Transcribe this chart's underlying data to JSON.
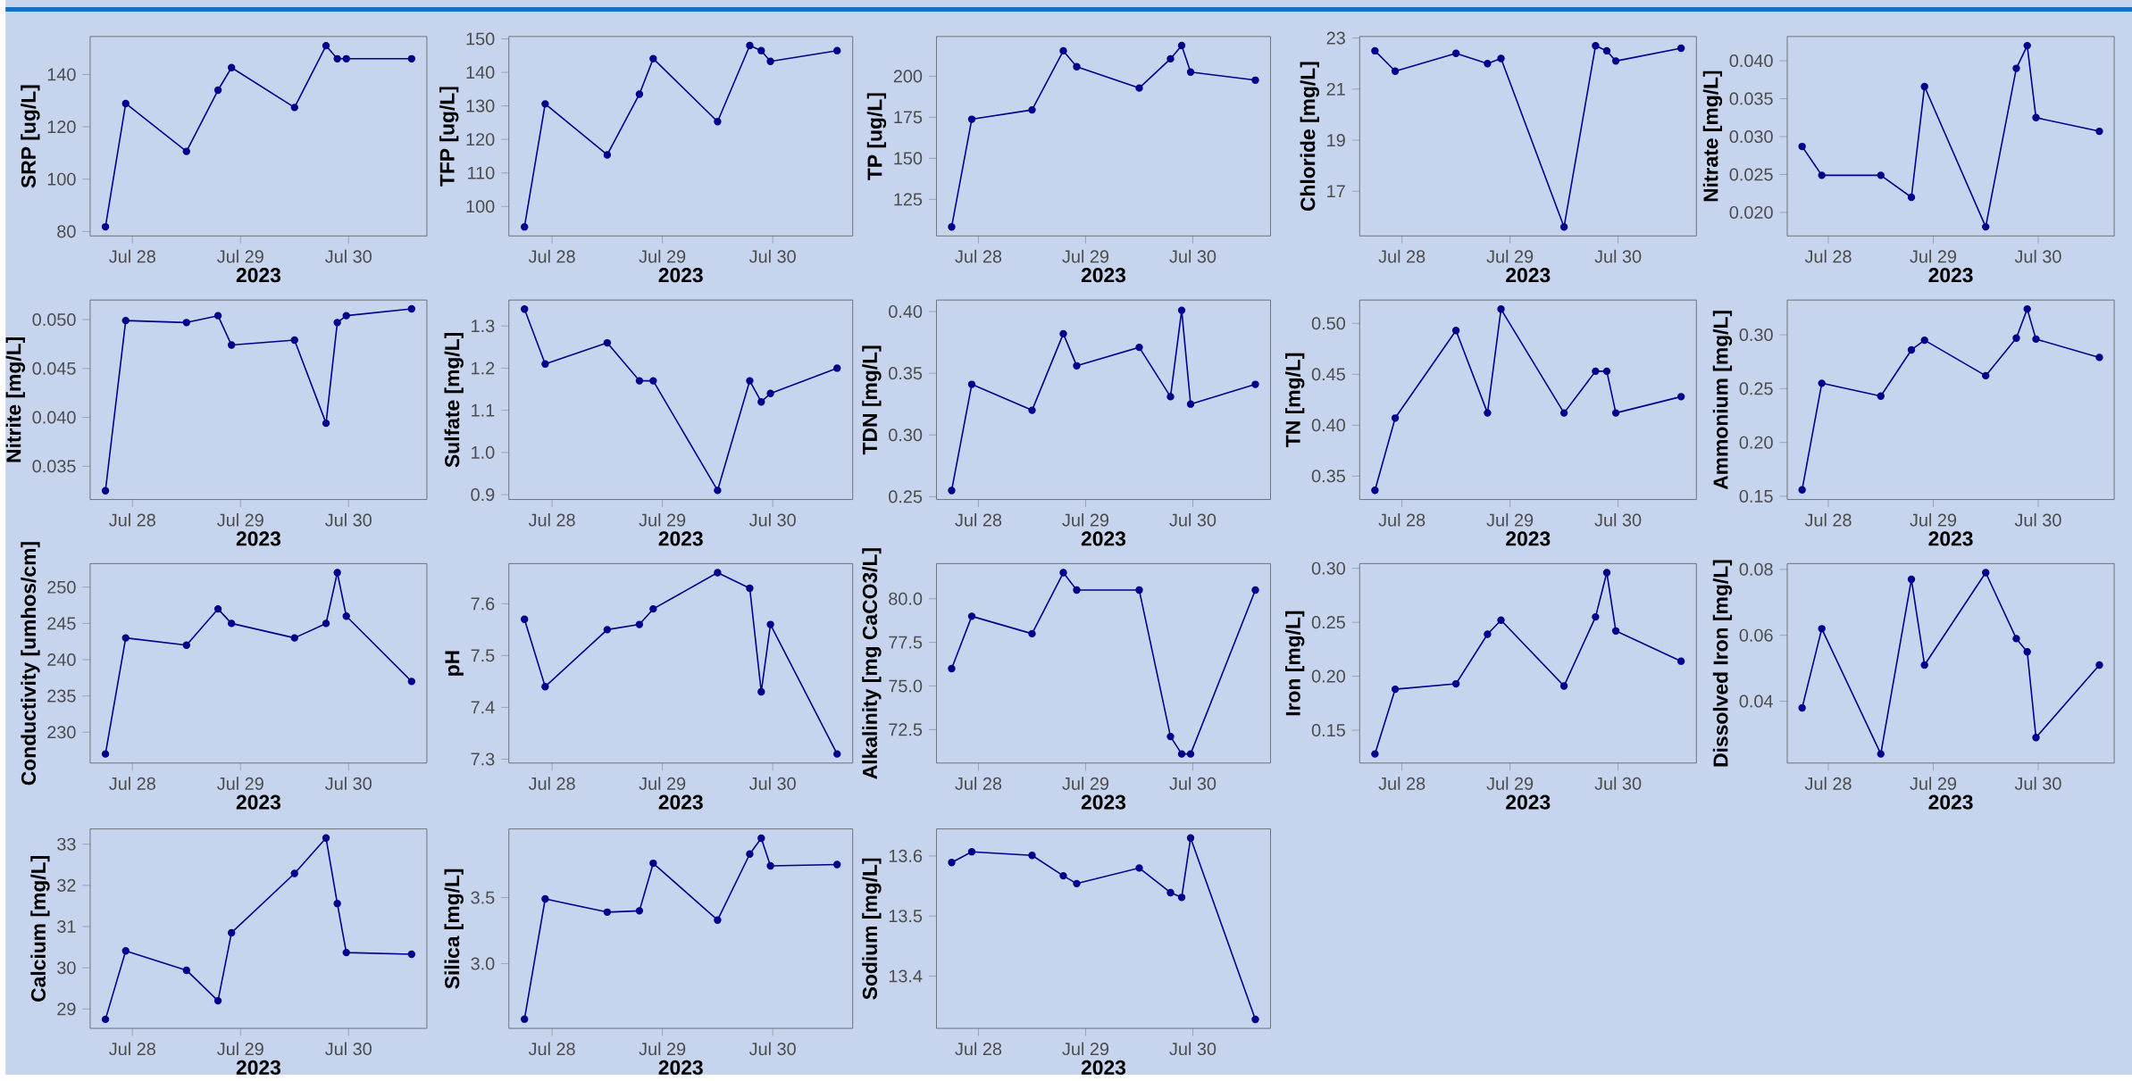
{
  "chart_data": [
    {
      "type": "line",
      "ylabel": "SRP [ug/L]",
      "xlabel": "2023",
      "color": "#00008b",
      "marker": "circle",
      "x": [
        "2023-07-27T18:00",
        "2023-07-27T22:30",
        "2023-07-28T12:00",
        "2023-07-28T19:00",
        "2023-07-28T22:00",
        "2023-07-29T12:00",
        "2023-07-29T19:00",
        "2023-07-29T21:30",
        "2023-07-29T23:30",
        "2023-07-30T14:00"
      ],
      "values": [
        81.8,
        128.9,
        110.6,
        134,
        142.6,
        127.4,
        151,
        146,
        146,
        146
      ],
      "xlim": [
        "2023-07-27T14:36",
        "2023-07-30T17:24"
      ],
      "xticks": [
        {
          "value": "2023-07-28",
          "label": "Jul 28"
        },
        {
          "value": "2023-07-29",
          "label": "Jul 29"
        },
        {
          "value": "2023-07-30",
          "label": "Jul 30"
        }
      ],
      "ylim": [
        78.3,
        154.5
      ],
      "yticks": [
        80,
        100,
        120,
        140
      ]
    },
    {
      "type": "line",
      "ylabel": "TFP [ug/L]",
      "xlabel": "2023",
      "color": "#00008b",
      "marker": "circle",
      "x": [
        "2023-07-27T18:00",
        "2023-07-27T22:30",
        "2023-07-28T12:00",
        "2023-07-28T19:00",
        "2023-07-28T22:00",
        "2023-07-29T12:00",
        "2023-07-29T19:00",
        "2023-07-29T21:30",
        "2023-07-29T23:30",
        "2023-07-30T14:00"
      ],
      "values": [
        93.9,
        130.6,
        115.4,
        133.5,
        144.1,
        125.3,
        148,
        146.5,
        143.3,
        146.5
      ],
      "xlim": [
        "2023-07-27T14:36",
        "2023-07-30T17:24"
      ],
      "xticks": [
        {
          "value": "2023-07-28",
          "label": "Jul 28"
        },
        {
          "value": "2023-07-29",
          "label": "Jul 29"
        },
        {
          "value": "2023-07-30",
          "label": "Jul 30"
        }
      ],
      "ylim": [
        91.2,
        150.7
      ],
      "yticks": [
        100,
        110,
        120,
        130,
        140,
        150
      ]
    },
    {
      "type": "line",
      "ylabel": "TP [ug/L]",
      "xlabel": "2023",
      "color": "#00008b",
      "marker": "circle",
      "x": [
        "2023-07-27T18:00",
        "2023-07-27T22:30",
        "2023-07-28T12:00",
        "2023-07-28T19:00",
        "2023-07-28T22:00",
        "2023-07-29T12:00",
        "2023-07-29T19:00",
        "2023-07-29T21:30",
        "2023-07-29T23:30",
        "2023-07-30T14:00"
      ],
      "values": [
        108.2,
        173.8,
        179.5,
        215.5,
        205.8,
        192.8,
        210.6,
        218.7,
        202.5,
        197.6
      ],
      "xlim": [
        "2023-07-27T14:36",
        "2023-07-30T17:24"
      ],
      "xticks": [
        {
          "value": "2023-07-28",
          "label": "Jul 28"
        },
        {
          "value": "2023-07-29",
          "label": "Jul 29"
        },
        {
          "value": "2023-07-30",
          "label": "Jul 30"
        }
      ],
      "ylim": [
        102.7,
        224.2
      ],
      "yticks": [
        125,
        150,
        175,
        200
      ]
    },
    {
      "type": "line",
      "ylabel": "Chloride [mg/L]",
      "xlabel": "2023",
      "color": "#00008b",
      "marker": "circle",
      "x": [
        "2023-07-27T18:00",
        "2023-07-27T22:30",
        "2023-07-28T12:00",
        "2023-07-28T19:00",
        "2023-07-28T22:00",
        "2023-07-29T12:00",
        "2023-07-29T19:00",
        "2023-07-29T21:30",
        "2023-07-29T23:30",
        "2023-07-30T14:00"
      ],
      "values": [
        22.5,
        21.7,
        22.4,
        22.0,
        22.2,
        15.6,
        22.7,
        22.5,
        22.1,
        22.6
      ],
      "xlim": [
        "2023-07-27T14:36",
        "2023-07-30T17:24"
      ],
      "xticks": [
        {
          "value": "2023-07-28",
          "label": "Jul 28"
        },
        {
          "value": "2023-07-29",
          "label": "Jul 29"
        },
        {
          "value": "2023-07-30",
          "label": "Jul 30"
        }
      ],
      "ylim": [
        15.25,
        23.06
      ],
      "yticks": [
        17,
        19,
        21,
        23
      ]
    },
    {
      "type": "line",
      "ylabel": "Nitrate [mg/L]",
      "xlabel": "2023",
      "color": "#00008b",
      "marker": "circle",
      "x": [
        "2023-07-27T18:00",
        "2023-07-27T22:30",
        "2023-07-28T12:00",
        "2023-07-28T19:00",
        "2023-07-28T22:00",
        "2023-07-29T12:00",
        "2023-07-29T19:00",
        "2023-07-29T21:30",
        "2023-07-29T23:30",
        "2023-07-30T14:00"
      ],
      "values": [
        0.0287,
        0.0249,
        0.0249,
        0.022,
        0.0366,
        0.0181,
        0.039,
        0.042,
        0.0325,
        0.0307
      ],
      "xlim": [
        "2023-07-27T14:36",
        "2023-07-30T17:24"
      ],
      "xticks": [
        {
          "value": "2023-07-28",
          "label": "Jul 28"
        },
        {
          "value": "2023-07-29",
          "label": "Jul 29"
        },
        {
          "value": "2023-07-30",
          "label": "Jul 30"
        }
      ],
      "ylim": [
        0.0169,
        0.0432
      ],
      "yticks": [
        {
          "value": 0.02,
          "label": "0.020"
        },
        {
          "value": 0.025,
          "label": "0.025"
        },
        {
          "value": 0.03,
          "label": "0.030"
        },
        {
          "value": 0.035,
          "label": "0.035"
        },
        {
          "value": 0.04,
          "label": "0.040"
        }
      ]
    },
    {
      "type": "line",
      "ylabel": "Nitrite [mg/L]",
      "xlabel": "2023",
      "color": "#00008b",
      "marker": "circle",
      "x": [
        "2023-07-27T18:00",
        "2023-07-27T22:30",
        "2023-07-28T12:00",
        "2023-07-28T19:00",
        "2023-07-28T22:00",
        "2023-07-29T12:00",
        "2023-07-29T19:00",
        "2023-07-29T21:30",
        "2023-07-29T23:30",
        "2023-07-30T14:00"
      ],
      "values": [
        0.0325,
        0.0499,
        0.0497,
        0.0504,
        0.0474,
        0.0479,
        0.0394,
        0.0497,
        0.0504,
        0.0511
      ],
      "xlim": [
        "2023-07-27T14:36",
        "2023-07-30T17:24"
      ],
      "xticks": [
        {
          "value": "2023-07-28",
          "label": "Jul 28"
        },
        {
          "value": "2023-07-29",
          "label": "Jul 29"
        },
        {
          "value": "2023-07-30",
          "label": "Jul 30"
        }
      ],
      "ylim": [
        0.0316,
        0.052
      ],
      "yticks": [
        0.035,
        {
          "value": 0.04,
          "label": "0.040"
        },
        0.045,
        {
          "value": 0.05,
          "label": "0.050"
        }
      ]
    },
    {
      "type": "line",
      "ylabel": "Sulfate [mg/L]",
      "xlabel": "2023",
      "color": "#00008b",
      "marker": "circle",
      "x": [
        "2023-07-27T18:00",
        "2023-07-27T22:30",
        "2023-07-28T12:00",
        "2023-07-28T19:00",
        "2023-07-28T22:00",
        "2023-07-29T12:00",
        "2023-07-29T19:00",
        "2023-07-29T21:30",
        "2023-07-29T23:30",
        "2023-07-30T14:00"
      ],
      "values": [
        1.34,
        1.21,
        1.26,
        1.17,
        1.17,
        0.91,
        1.17,
        1.12,
        1.14,
        1.2
      ],
      "xlim": [
        "2023-07-27T14:36",
        "2023-07-30T17:24"
      ],
      "xticks": [
        {
          "value": "2023-07-28",
          "label": "Jul 28"
        },
        {
          "value": "2023-07-29",
          "label": "Jul 29"
        },
        {
          "value": "2023-07-30",
          "label": "Jul 30"
        }
      ],
      "ylim": [
        0.8885,
        1.3615
      ],
      "yticks": [
        0.9,
        {
          "value": 1,
          "label": "1.0"
        },
        1.1,
        1.2,
        1.3
      ]
    },
    {
      "type": "line",
      "ylabel": "TDN [mg/L]",
      "xlabel": "2023",
      "color": "#00008b",
      "marker": "circle",
      "x": [
        "2023-07-27T18:00",
        "2023-07-27T22:30",
        "2023-07-28T12:00",
        "2023-07-28T19:00",
        "2023-07-28T22:00",
        "2023-07-29T12:00",
        "2023-07-29T19:00",
        "2023-07-29T21:30",
        "2023-07-29T23:30",
        "2023-07-30T14:00"
      ],
      "values": [
        0.255,
        0.341,
        0.32,
        0.382,
        0.356,
        0.371,
        0.331,
        0.401,
        0.325,
        0.341
      ],
      "xlim": [
        "2023-07-27T14:36",
        "2023-07-30T17:24"
      ],
      "xticks": [
        {
          "value": "2023-07-28",
          "label": "Jul 28"
        },
        {
          "value": "2023-07-29",
          "label": "Jul 29"
        },
        {
          "value": "2023-07-30",
          "label": "Jul 30"
        }
      ],
      "ylim": [
        0.2477,
        0.4093
      ],
      "yticks": [
        0.25,
        {
          "value": 0.3,
          "label": "0.30"
        },
        0.35,
        {
          "value": 0.4,
          "label": "0.40"
        }
      ]
    },
    {
      "type": "line",
      "ylabel": "TN [mg/L]",
      "xlabel": "2023",
      "color": "#00008b",
      "marker": "circle",
      "x": [
        "2023-07-27T18:00",
        "2023-07-27T22:30",
        "2023-07-28T12:00",
        "2023-07-28T19:00",
        "2023-07-28T22:00",
        "2023-07-29T12:00",
        "2023-07-29T19:00",
        "2023-07-29T21:30",
        "2023-07-29T23:30",
        "2023-07-30T14:00"
      ],
      "values": [
        0.336,
        0.407,
        0.493,
        0.412,
        0.514,
        0.412,
        0.453,
        0.453,
        0.412,
        0.428
      ],
      "xlim": [
        "2023-07-27T14:36",
        "2023-07-30T17:24"
      ],
      "xticks": [
        {
          "value": "2023-07-28",
          "label": "Jul 28"
        },
        {
          "value": "2023-07-29",
          "label": "Jul 29"
        },
        {
          "value": "2023-07-30",
          "label": "Jul 30"
        }
      ],
      "ylim": [
        0.327,
        0.5229
      ],
      "yticks": [
        0.35,
        {
          "value": 0.4,
          "label": "0.40"
        },
        0.45,
        {
          "value": 0.5,
          "label": "0.50"
        }
      ]
    },
    {
      "type": "line",
      "ylabel": "Ammonium [mg/L]",
      "xlabel": "2023",
      "color": "#00008b",
      "marker": "circle",
      "x": [
        "2023-07-27T18:00",
        "2023-07-27T22:30",
        "2023-07-28T12:00",
        "2023-07-28T19:00",
        "2023-07-28T22:00",
        "2023-07-29T12:00",
        "2023-07-29T19:00",
        "2023-07-29T21:30",
        "2023-07-29T23:30",
        "2023-07-30T14:00"
      ],
      "values": [
        0.156,
        0.255,
        0.243,
        0.286,
        0.295,
        0.262,
        0.297,
        0.324,
        0.296,
        0.279
      ],
      "xlim": [
        "2023-07-27T14:36",
        "2023-07-30T17:24"
      ],
      "xticks": [
        {
          "value": "2023-07-28",
          "label": "Jul 28"
        },
        {
          "value": "2023-07-29",
          "label": "Jul 29"
        },
        {
          "value": "2023-07-30",
          "label": "Jul 30"
        }
      ],
      "ylim": [
        0.147,
        0.3323
      ],
      "yticks": [
        0.15,
        {
          "value": 0.2,
          "label": "0.20"
        },
        0.25,
        {
          "value": 0.3,
          "label": "0.30"
        }
      ]
    },
    {
      "type": "line",
      "ylabel": "Conductivity [umhos/cm]",
      "xlabel": "2023",
      "color": "#00008b",
      "marker": "circle",
      "x": [
        "2023-07-27T18:00",
        "2023-07-27T22:30",
        "2023-07-28T12:00",
        "2023-07-28T19:00",
        "2023-07-28T22:00",
        "2023-07-29T12:00",
        "2023-07-29T19:00",
        "2023-07-29T21:30",
        "2023-07-29T23:30",
        "2023-07-30T14:00"
      ],
      "values": [
        227,
        243,
        242,
        247,
        245,
        243,
        245,
        252,
        246,
        237
      ],
      "xlim": [
        "2023-07-27T14:36",
        "2023-07-30T17:24"
      ],
      "xticks": [
        {
          "value": "2023-07-28",
          "label": "Jul 28"
        },
        {
          "value": "2023-07-29",
          "label": "Jul 29"
        },
        {
          "value": "2023-07-30",
          "label": "Jul 30"
        }
      ],
      "ylim": [
        225.75,
        253.25
      ],
      "yticks": [
        230,
        235,
        240,
        245,
        250
      ]
    },
    {
      "type": "line",
      "ylabel": "pH",
      "xlabel": "2023",
      "color": "#00008b",
      "marker": "circle",
      "x": [
        "2023-07-27T18:00",
        "2023-07-27T22:30",
        "2023-07-28T12:00",
        "2023-07-28T19:00",
        "2023-07-28T22:00",
        "2023-07-29T12:00",
        "2023-07-29T19:00",
        "2023-07-29T21:30",
        "2023-07-29T23:30",
        "2023-07-30T14:00"
      ],
      "values": [
        7.57,
        7.44,
        7.55,
        7.56,
        7.59,
        7.66,
        7.63,
        7.43,
        7.56,
        7.31
      ],
      "xlim": [
        "2023-07-27T14:36",
        "2023-07-30T17:24"
      ],
      "xticks": [
        {
          "value": "2023-07-28",
          "label": "Jul 28"
        },
        {
          "value": "2023-07-29",
          "label": "Jul 29"
        },
        {
          "value": "2023-07-30",
          "label": "Jul 30"
        }
      ],
      "ylim": [
        7.2925,
        7.6775
      ],
      "yticks": [
        7.3,
        7.4,
        7.5,
        7.6
      ]
    },
    {
      "type": "line",
      "ylabel": "Alkalinity [mg CaCO3/L]",
      "xlabel": "2023",
      "color": "#00008b",
      "marker": "circle",
      "x": [
        "2023-07-27T18:00",
        "2023-07-27T22:30",
        "2023-07-28T12:00",
        "2023-07-28T19:00",
        "2023-07-28T22:00",
        "2023-07-29T12:00",
        "2023-07-29T19:00",
        "2023-07-29T21:30",
        "2023-07-29T23:30",
        "2023-07-30T14:00"
      ],
      "values": [
        76.0,
        79.0,
        78.0,
        81.5,
        80.5,
        80.5,
        72.1,
        71.1,
        71.1,
        80.5
      ],
      "xlim": [
        "2023-07-27T14:36",
        "2023-07-30T17:24"
      ],
      "xticks": [
        {
          "value": "2023-07-28",
          "label": "Jul 28"
        },
        {
          "value": "2023-07-29",
          "label": "Jul 29"
        },
        {
          "value": "2023-07-30",
          "label": "Jul 30"
        }
      ],
      "ylim": [
        70.58,
        82.02
      ],
      "yticks": [
        72.5,
        {
          "value": 75,
          "label": "75.0"
        },
        77.5,
        {
          "value": 80,
          "label": "80.0"
        }
      ]
    },
    {
      "type": "line",
      "ylabel": "Iron [mg/L]",
      "xlabel": "2023",
      "color": "#00008b",
      "marker": "circle",
      "x": [
        "2023-07-27T18:00",
        "2023-07-27T22:30",
        "2023-07-28T12:00",
        "2023-07-28T19:00",
        "2023-07-28T22:00",
        "2023-07-29T12:00",
        "2023-07-29T19:00",
        "2023-07-29T21:30",
        "2023-07-29T23:30",
        "2023-07-30T14:00"
      ],
      "values": [
        0.128,
        0.188,
        0.193,
        0.239,
        0.252,
        0.191,
        0.255,
        0.296,
        0.242,
        0.214
      ],
      "xlim": [
        "2023-07-27T14:36",
        "2023-07-30T17:24"
      ],
      "xticks": [
        {
          "value": "2023-07-28",
          "label": "Jul 28"
        },
        {
          "value": "2023-07-29",
          "label": "Jul 29"
        },
        {
          "value": "2023-07-30",
          "label": "Jul 30"
        }
      ],
      "ylim": [
        0.1196,
        0.3044
      ],
      "yticks": [
        0.15,
        {
          "value": 0.2,
          "label": "0.20"
        },
        0.25,
        {
          "value": 0.3,
          "label": "0.30"
        }
      ]
    },
    {
      "type": "line",
      "ylabel": "Dissolved Iron [mg/L]",
      "xlabel": "2023",
      "color": "#00008b",
      "marker": "circle",
      "x": [
        "2023-07-27T18:00",
        "2023-07-27T22:30",
        "2023-07-28T12:00",
        "2023-07-28T19:00",
        "2023-07-28T22:00",
        "2023-07-29T12:00",
        "2023-07-29T19:00",
        "2023-07-29T21:30",
        "2023-07-29T23:30",
        "2023-07-30T14:00"
      ],
      "values": [
        0.038,
        0.062,
        0.024,
        0.077,
        0.051,
        0.079,
        0.059,
        0.055,
        0.029,
        0.051
      ],
      "xlim": [
        "2023-07-27T14:36",
        "2023-07-30T17:24"
      ],
      "xticks": [
        {
          "value": "2023-07-28",
          "label": "Jul 28"
        },
        {
          "value": "2023-07-29",
          "label": "Jul 29"
        },
        {
          "value": "2023-07-30",
          "label": "Jul 30"
        }
      ],
      "ylim": [
        0.02125,
        0.08175
      ],
      "yticks": [
        0.04,
        0.06,
        0.08
      ]
    },
    {
      "type": "line",
      "ylabel": "Calcium [mg/L]",
      "xlabel": "2023",
      "color": "#00008b",
      "marker": "circle",
      "x": [
        "2023-07-27T18:00",
        "2023-07-27T22:30",
        "2023-07-28T12:00",
        "2023-07-28T19:00",
        "2023-07-28T22:00",
        "2023-07-29T12:00",
        "2023-07-29T19:00",
        "2023-07-29T21:30",
        "2023-07-29T23:30",
        "2023-07-30T14:00"
      ],
      "values": [
        28.75,
        30.41,
        29.94,
        29.2,
        30.85,
        32.29,
        33.15,
        31.56,
        30.37,
        30.33
      ],
      "xlim": [
        "2023-07-27T14:36",
        "2023-07-30T17:24"
      ],
      "xticks": [
        {
          "value": "2023-07-28",
          "label": "Jul 28"
        },
        {
          "value": "2023-07-29",
          "label": "Jul 29"
        },
        {
          "value": "2023-07-30",
          "label": "Jul 30"
        }
      ],
      "ylim": [
        28.53,
        33.37
      ],
      "yticks": [
        29,
        30,
        31,
        32,
        33
      ]
    },
    {
      "type": "line",
      "ylabel": "Silica [mg/L]",
      "xlabel": "2023",
      "color": "#00008b",
      "marker": "circle",
      "x": [
        "2023-07-27T18:00",
        "2023-07-27T22:30",
        "2023-07-28T12:00",
        "2023-07-28T19:00",
        "2023-07-28T22:00",
        "2023-07-29T12:00",
        "2023-07-29T19:00",
        "2023-07-29T21:30",
        "2023-07-29T23:30",
        "2023-07-30T14:00"
      ],
      "values": [
        2.58,
        3.49,
        3.39,
        3.4,
        3.76,
        3.33,
        3.83,
        3.95,
        3.74,
        3.75
      ],
      "xlim": [
        "2023-07-27T14:36",
        "2023-07-30T17:24"
      ],
      "xticks": [
        {
          "value": "2023-07-28",
          "label": "Jul 28"
        },
        {
          "value": "2023-07-29",
          "label": "Jul 29"
        },
        {
          "value": "2023-07-30",
          "label": "Jul 30"
        }
      ],
      "ylim": [
        2.51,
        4.02
      ],
      "yticks": [
        {
          "value": 3,
          "label": "3.0"
        },
        3.5
      ]
    },
    {
      "type": "line",
      "ylabel": "Sodium [mg/L]",
      "xlabel": "2023",
      "color": "#00008b",
      "marker": "circle",
      "x": [
        "2023-07-27T18:00",
        "2023-07-27T22:30",
        "2023-07-28T12:00",
        "2023-07-28T19:00",
        "2023-07-28T22:00",
        "2023-07-29T12:00",
        "2023-07-29T19:00",
        "2023-07-29T21:30",
        "2023-07-29T23:30",
        "2023-07-30T14:00"
      ],
      "values": [
        13.589,
        13.607,
        13.601,
        13.567,
        13.554,
        13.58,
        13.539,
        13.531,
        13.63,
        13.328
      ],
      "xlim": [
        "2023-07-27T14:36",
        "2023-07-30T17:24"
      ],
      "xticks": [
        {
          "value": "2023-07-28",
          "label": "Jul 28"
        },
        {
          "value": "2023-07-29",
          "label": "Jul 29"
        },
        {
          "value": "2023-07-30",
          "label": "Jul 30"
        }
      ],
      "ylim": [
        13.313,
        13.645
      ],
      "yticks": [
        13.4,
        13.5,
        13.6
      ]
    }
  ]
}
